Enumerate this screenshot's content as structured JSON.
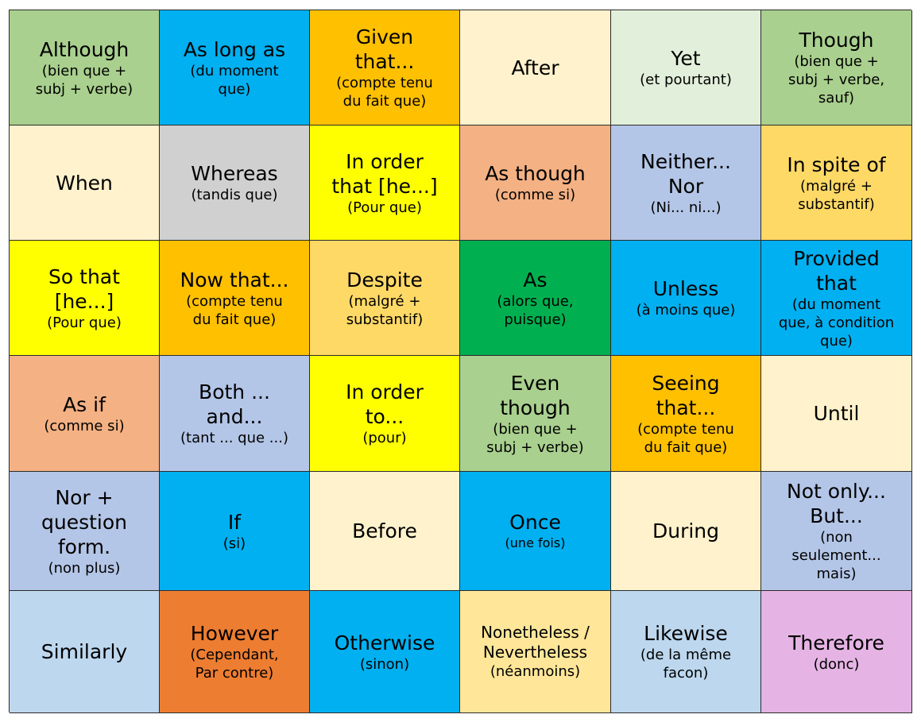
{
  "cells": [
    {
      "main": "Although",
      "sub": "(bien que +\nsubj + verbe)"
    },
    {
      "main": "As long as",
      "sub": "(du moment\nque)"
    },
    {
      "main": "Given\nthat...",
      "sub": "(compte tenu\ndu fait que)"
    },
    {
      "main": "After",
      "sub": ""
    },
    {
      "main": "Yet",
      "sub": "(et pourtant)"
    },
    {
      "main": "Though",
      "sub": "(bien que +\nsubj + verbe,\nsauf)"
    },
    {
      "main": "When",
      "sub": ""
    },
    {
      "main": "Whereas",
      "sub": "(tandis que)"
    },
    {
      "main": "In order\nthat [he...]",
      "sub": "(Pour que)"
    },
    {
      "main": "As though",
      "sub": "(comme si)"
    },
    {
      "main": "Neither...\nNor",
      "sub": "(Ni... ni...)"
    },
    {
      "main": "In spite of",
      "sub": "(malgré +\nsubstantif)"
    },
    {
      "main": "So that\n[he...]",
      "sub": "(Pour que)"
    },
    {
      "main": "Now that...",
      "sub": "(compte tenu\ndu fait que)"
    },
    {
      "main": "Despite",
      "sub": "(malgré +\nsubstantif)"
    },
    {
      "main": "As",
      "sub": "(alors que,\npuisque)"
    },
    {
      "main": "Unless",
      "sub": "(à moins que)"
    },
    {
      "main": "Provided\nthat",
      "sub": "(du moment\nque, à condition\nque)"
    },
    {
      "main": "As if",
      "sub": "(comme si)"
    },
    {
      "main": "Both ...\nand...",
      "sub": "(tant ... que ...)"
    },
    {
      "main": "In order\nto...",
      "sub": "(pour)"
    },
    {
      "main": "Even\nthough",
      "sub": "(bien que +\nsubj + verbe)"
    },
    {
      "main": "Seeing\nthat...",
      "sub": "(compte tenu\ndu fait que)"
    },
    {
      "main": "Until",
      "sub": ""
    },
    {
      "main": "Nor +\nquestion\nform.",
      "sub": "(non plus)"
    },
    {
      "main": "If",
      "sub": "(si)"
    },
    {
      "main": "Before",
      "sub": ""
    },
    {
      "main": "Once",
      "sub": "(une fois)"
    },
    {
      "main": "During",
      "sub": ""
    },
    {
      "main": "Not only...\nBut...",
      "sub": "(non\nseulement...\nmais)"
    },
    {
      "main": "Similarly",
      "sub": ""
    },
    {
      "main": "However",
      "sub": "(Cependant,\nPar contre)"
    },
    {
      "main": "Otherwise",
      "sub": "(sinon)"
    },
    {
      "main": "Nonetheless /\nNevertheless",
      "sub": "(néanmoins)"
    },
    {
      "main": "Likewise",
      "sub": "(de la même\nfacon)"
    },
    {
      "main": "Therefore",
      "sub": "(donc)"
    }
  ],
  "colors": {
    "green": "#a9d08e",
    "blue": "#00b0f0",
    "orange": "#ffc000",
    "cream": "#fff2cc",
    "mint": "#e2efda",
    "grey": "#d0d0d0",
    "yellow": "#ffff00",
    "salmon": "#f4b183",
    "lavender_blue": "#b4c6e7",
    "gold": "#ffd966",
    "dark_green": "#00b050",
    "light_blue": "#bdd7ee",
    "dark_orange": "#ed7d31",
    "wheat": "#ffe699",
    "pink": "#e5b4e4"
  }
}
